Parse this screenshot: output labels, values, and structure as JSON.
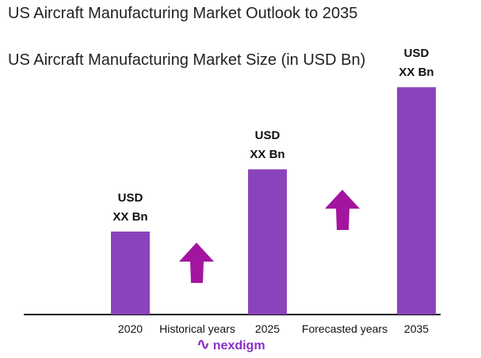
{
  "title": "US Aircraft Manufacturing Market Outlook to 2035",
  "subtitle": "US Aircraft Manufacturing Market Size (in USD Bn)",
  "logo": "nexdigm",
  "chart_data": {
    "type": "bar",
    "categories": [
      "2020",
      "2025",
      "2035"
    ],
    "values": [
      1.0,
      1.75,
      2.74
    ],
    "data_labels": [
      [
        "USD",
        "XX Bn"
      ],
      [
        "USD",
        "XX Bn"
      ],
      [
        "USD",
        "XX Bn"
      ]
    ],
    "period_labels": [
      "Historical years",
      "Forecasted years"
    ],
    "bar_color": "#8a44bb",
    "arrow_color": "#a3159f",
    "grid": false
  }
}
